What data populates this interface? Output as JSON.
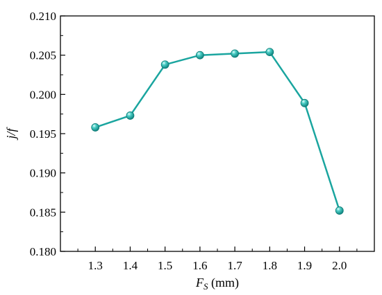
{
  "chart_data": {
    "type": "line",
    "x": [
      1.3,
      1.4,
      1.5,
      1.6,
      1.7,
      1.8,
      1.9,
      2.0
    ],
    "series": [
      {
        "values": [
          0.1958,
          0.1973,
          0.2038,
          0.205,
          0.2052,
          0.2054,
          0.1989,
          0.1852
        ]
      }
    ],
    "xticks": [
      "1.3",
      "1.4",
      "1.5",
      "1.6",
      "1.7",
      "1.8",
      "1.9",
      "2.0"
    ],
    "yticks": [
      "0.180",
      "0.185",
      "0.190",
      "0.195",
      "0.200",
      "0.205",
      "0.210"
    ],
    "xlim": [
      1.2,
      2.1
    ],
    "ylim": [
      0.18,
      0.21
    ],
    "xlabel_main": "F",
    "xlabel_sub": "S",
    "xlabel_unit": " (mm)",
    "ylabel": "j/f",
    "grid": false,
    "line_color": "#1aa59f",
    "marker_color": "#1aa59f"
  }
}
